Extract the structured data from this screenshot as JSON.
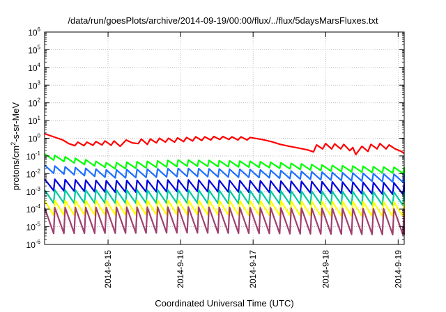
{
  "chart_data": {
    "type": "line",
    "title": "/data/run/goesPlots/archive/2014-09-19/00:00/flux/../flux/5daysMarsFluxes.txt",
    "xlabel": "Coordinated Universal Time (UTC)",
    "ylabel_parts": {
      "before": "protons/cm",
      "sup": "2",
      "after": "-s-sr-MeV"
    },
    "xlim": [
      "2014-09-14 03:00",
      "2014-09-19 02:00"
    ],
    "ylim": [
      1e-06,
      1000000.0
    ],
    "yscale": "log",
    "grid": true,
    "x_ticks": [
      "2014-9-15",
      "2014-9-16",
      "2014-9-17",
      "2014-9-18",
      "2014-9-19"
    ],
    "y_ticks": [
      {
        "base": "10",
        "exp": "-6"
      },
      {
        "base": "10",
        "exp": "-5"
      },
      {
        "base": "10",
        "exp": "-4"
      },
      {
        "base": "10",
        "exp": "-3"
      },
      {
        "base": "10",
        "exp": "-2"
      },
      {
        "base": "10",
        "exp": "-1"
      },
      {
        "base": "10",
        "exp": "0"
      },
      {
        "base": "10",
        "exp": "1"
      },
      {
        "base": "10",
        "exp": "2"
      },
      {
        "base": "10",
        "exp": "3"
      },
      {
        "base": "10",
        "exp": "4"
      },
      {
        "base": "10",
        "exp": "5"
      },
      {
        "base": "10",
        "exp": "6"
      }
    ],
    "series": [
      {
        "color": "#ff0000",
        "points": [
          [
            "2014-09-14 03:00",
            1.8
          ],
          [
            "2014-09-14 06:00",
            1.2
          ],
          [
            "2014-09-14 09:00",
            0.8
          ],
          [
            "2014-09-14 11:00",
            0.5
          ],
          [
            "2014-09-14 13:00",
            0.38
          ],
          [
            "2014-09-14 14:00",
            0.6
          ],
          [
            "2014-09-14 16:00",
            0.38
          ],
          [
            "2014-09-14 17:00",
            0.6
          ],
          [
            "2014-09-14 19:00",
            0.4
          ],
          [
            "2014-09-14 20:00",
            0.65
          ],
          [
            "2014-09-14 22:00",
            0.42
          ],
          [
            "2014-09-14 23:00",
            0.7
          ],
          [
            "2014-09-15 01:00",
            0.4
          ],
          [
            "2014-09-15 02:00",
            0.7
          ],
          [
            "2014-09-15 04:00",
            0.35
          ],
          [
            "2014-09-15 06:00",
            0.8
          ],
          [
            "2014-09-15 08:00",
            0.55
          ],
          [
            "2014-09-15 10:00",
            0.5
          ],
          [
            "2014-09-15 11:00",
            0.9
          ],
          [
            "2014-09-15 13:00",
            0.45
          ],
          [
            "2014-09-15 14:00",
            0.9
          ],
          [
            "2014-09-15 16:00",
            0.55
          ],
          [
            "2014-09-15 17:00",
            1.0
          ],
          [
            "2014-09-15 19:00",
            0.6
          ],
          [
            "2014-09-15 20:00",
            1.0
          ],
          [
            "2014-09-15 22:00",
            0.6
          ],
          [
            "2014-09-15 23:00",
            1.05
          ],
          [
            "2014-09-16 01:00",
            0.65
          ],
          [
            "2014-09-16 02:00",
            1.1
          ],
          [
            "2014-09-16 04:00",
            0.7
          ],
          [
            "2014-09-16 05:00",
            1.2
          ],
          [
            "2014-09-16 07:00",
            0.75
          ],
          [
            "2014-09-16 08:00",
            1.2
          ],
          [
            "2014-09-16 10:00",
            0.8
          ],
          [
            "2014-09-16 11:00",
            1.25
          ],
          [
            "2014-09-16 13:00",
            0.85
          ],
          [
            "2014-09-16 14:00",
            1.25
          ],
          [
            "2014-09-16 16:00",
            0.85
          ],
          [
            "2014-09-16 17:00",
            1.2
          ],
          [
            "2014-09-16 19:00",
            0.8
          ],
          [
            "2014-09-16 20:00",
            1.2
          ],
          [
            "2014-09-16 22:00",
            0.8
          ],
          [
            "2014-09-16 23:00",
            1.1
          ],
          [
            "2014-09-17 03:00",
            0.85
          ],
          [
            "2014-09-17 06:00",
            0.65
          ],
          [
            "2014-09-17 09:00",
            0.45
          ],
          [
            "2014-09-17 12:00",
            0.35
          ],
          [
            "2014-09-17 15:00",
            0.28
          ],
          [
            "2014-09-17 18:00",
            0.22
          ],
          [
            "2014-09-17 20:00",
            0.17
          ],
          [
            "2014-09-17 21:00",
            0.42
          ],
          [
            "2014-09-17 23:00",
            0.25
          ],
          [
            "2014-09-18 00:00",
            0.5
          ],
          [
            "2014-09-18 02:00",
            0.25
          ],
          [
            "2014-09-18 03:00",
            0.48
          ],
          [
            "2014-09-18 05:00",
            0.25
          ],
          [
            "2014-09-18 06:00",
            0.45
          ],
          [
            "2014-09-18 08:00",
            0.2
          ],
          [
            "2014-09-18 09:00",
            0.3
          ],
          [
            "2014-09-18 10:00",
            0.12
          ],
          [
            "2014-09-18 12:00",
            0.35
          ],
          [
            "2014-09-18 14:00",
            0.18
          ],
          [
            "2014-09-18 15:00",
            0.45
          ],
          [
            "2014-09-18 17:00",
            0.25
          ],
          [
            "2014-09-18 18:00",
            0.5
          ],
          [
            "2014-09-18 20:00",
            0.25
          ],
          [
            "2014-09-18 21:00",
            0.42
          ],
          [
            "2014-09-18 23:00",
            0.25
          ],
          [
            "2014-09-19 01:00",
            0.18
          ],
          [
            "2014-09-19 02:00",
            0.14
          ]
        ]
      },
      {
        "color": "#00ff00",
        "sawtooth": {
          "start": "2014-09-14 03:00",
          "end": "2014-09-19 02:00",
          "period_hours": 3.4,
          "trend": [
            [
              "2014-09-14 03:00",
              0.13
            ],
            [
              "2014-09-15 00:00",
              0.04
            ],
            [
              "2014-09-16 00:00",
              0.06
            ],
            [
              "2014-09-17 00:00",
              0.05
            ],
            [
              "2014-09-18 00:00",
              0.03
            ],
            [
              "2014-09-19 02:00",
              0.022
            ]
          ],
          "ratio": 0.45
        }
      },
      {
        "color": "#1e6fff",
        "sawtooth": {
          "start": "2014-09-14 03:00",
          "end": "2014-09-19 02:00",
          "period_hours": 3.4,
          "trend": [
            [
              "2014-09-14 03:00",
              0.03
            ],
            [
              "2014-09-15 00:00",
              0.016
            ],
            [
              "2014-09-16 00:00",
              0.02
            ],
            [
              "2014-09-17 00:00",
              0.017
            ],
            [
              "2014-09-18 00:00",
              0.012
            ],
            [
              "2014-09-19 02:00",
              0.009
            ]
          ],
          "ratio": 0.35
        }
      },
      {
        "color": "#0000dd",
        "sawtooth": {
          "start": "2014-09-14 03:00",
          "end": "2014-09-19 02:00",
          "period_hours": 3.4,
          "trend": [
            [
              "2014-09-14 03:00",
              0.005
            ],
            [
              "2014-09-15 00:00",
              0.004
            ],
            [
              "2014-09-16 00:00",
              0.0045
            ],
            [
              "2014-09-17 00:00",
              0.004
            ],
            [
              "2014-09-18 00:00",
              0.0035
            ],
            [
              "2014-09-19 02:00",
              0.003
            ]
          ],
          "ratio": 0.22
        }
      },
      {
        "color": "#00c8a0",
        "sawtooth": {
          "start": "2014-09-14 03:00",
          "end": "2014-09-19 02:00",
          "period_hours": 3.4,
          "trend": [
            [
              "2014-09-14 03:00",
              0.0012
            ],
            [
              "2014-09-16 00:00",
              0.0012
            ],
            [
              "2014-09-19 02:00",
              0.0009
            ]
          ],
          "ratio": 0.18
        }
      },
      {
        "color": "#ffff00",
        "sawtooth": {
          "start": "2014-09-14 03:00",
          "end": "2014-09-19 02:00",
          "period_hours": 3.4,
          "trend": [
            [
              "2014-09-14 03:00",
              0.0003
            ],
            [
              "2014-09-16 00:00",
              0.00032
            ],
            [
              "2014-09-19 02:00",
              0.00025
            ]
          ],
          "ratio": 0.15
        }
      },
      {
        "color": "#a04070",
        "sawtooth": {
          "start": "2014-09-14 03:00",
          "end": "2014-09-19 02:00",
          "period_hours": 3.4,
          "trend": [
            [
              "2014-09-14 03:00",
              0.00012
            ],
            [
              "2014-09-16 00:00",
              0.00013
            ],
            [
              "2014-09-19 02:00",
              0.0001
            ]
          ],
          "ratio": 0.035
        }
      }
    ]
  }
}
